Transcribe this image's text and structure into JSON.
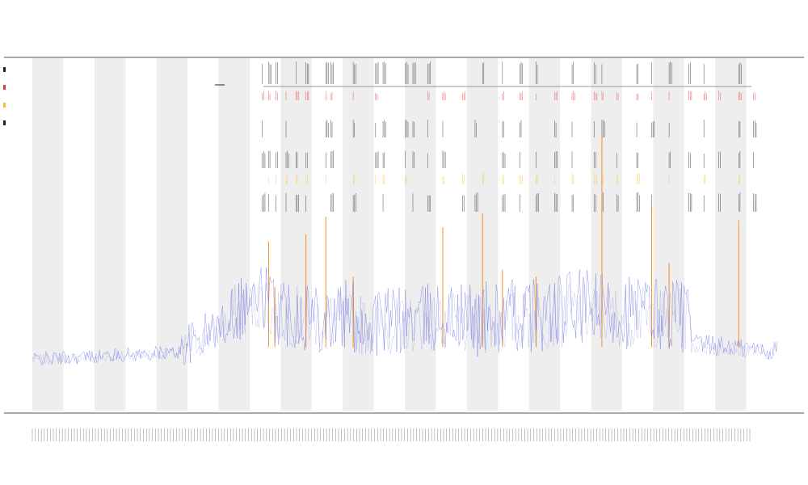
{
  "chart_data": {
    "type": "line",
    "title": "",
    "subtitle": [
      "",
      ""
    ],
    "xlabel": "",
    "ylabel": "",
    "grid": false,
    "ylim": [
      0,
      100
    ],
    "x_count": 600,
    "legend": {
      "placement": "top-left",
      "entries": [
        {
          "name": "",
          "color": "#222222"
        },
        {
          "name": "",
          "color": "#e53935"
        },
        {
          "name": "",
          "color": "#fbc02d"
        },
        {
          "name": "",
          "color": "#222222"
        }
      ]
    },
    "colors": {
      "series_main": "#3a46d8",
      "series_peak": "#f57c00",
      "band": "#eeeeee",
      "track_dark": "#222222",
      "track_red": "#e53935",
      "track_yellow": "#fbc02d"
    },
    "segments": [
      {
        "from": 0,
        "to": 120,
        "start": 14,
        "end": 16,
        "noise": 4
      },
      {
        "from": 120,
        "to": 160,
        "start": 16,
        "end": 24,
        "noise": 12
      },
      {
        "from": 160,
        "to": 190,
        "start": 26,
        "end": 30,
        "noise": 20
      },
      {
        "from": 190,
        "to": 280,
        "start": 26,
        "end": 22,
        "noise": 22
      },
      {
        "from": 280,
        "to": 340,
        "start": 22,
        "end": 24,
        "noise": 20
      },
      {
        "from": 340,
        "to": 430,
        "start": 22,
        "end": 25,
        "noise": 22
      },
      {
        "from": 430,
        "to": 530,
        "start": 26,
        "end": 24,
        "noise": 22
      },
      {
        "from": 530,
        "to": 600,
        "start": 18,
        "end": 16,
        "noise": 6
      }
    ],
    "peaks": [
      {
        "x": 190,
        "value": 48
      },
      {
        "x": 195,
        "value": 35
      },
      {
        "x": 220,
        "value": 50
      },
      {
        "x": 236,
        "value": 55
      },
      {
        "x": 258,
        "value": 38
      },
      {
        "x": 330,
        "value": 52
      },
      {
        "x": 362,
        "value": 56
      },
      {
        "x": 378,
        "value": 40
      },
      {
        "x": 405,
        "value": 38
      },
      {
        "x": 458,
        "value": 78
      },
      {
        "x": 498,
        "value": 58
      },
      {
        "x": 512,
        "value": 42
      },
      {
        "x": 568,
        "value": 54
      }
    ],
    "track_events": [
      185,
      190,
      196,
      204,
      212,
      220,
      236,
      240,
      258,
      276,
      282,
      300,
      306,
      318,
      330,
      346,
      356,
      362,
      378,
      392,
      405,
      420,
      434,
      452,
      458,
      470,
      486,
      498,
      512,
      528,
      540,
      552,
      568,
      580
    ],
    "annotation": [
      "",
      ""
    ],
    "bands": 12
  }
}
